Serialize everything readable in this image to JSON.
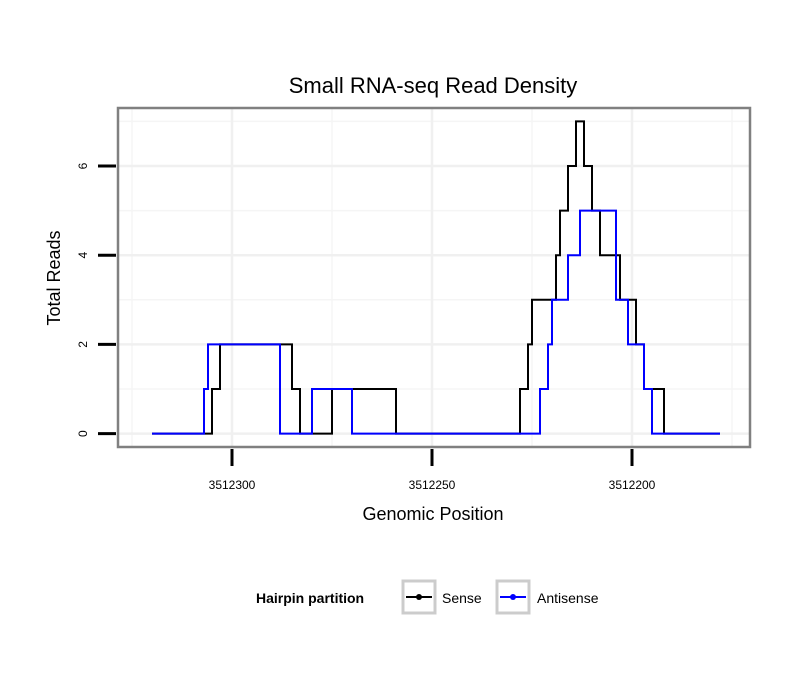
{
  "chart_data": {
    "type": "line",
    "title": "Small RNA-seq Read Density",
    "xlabel": "Genomic Position",
    "ylabel": "Total Reads",
    "xlim": [
      3512328.5,
      3512170.5
    ],
    "ylim": [
      -0.3,
      7.3
    ],
    "x_reversed": true,
    "xticks": [
      3512300,
      3512250,
      3512200
    ],
    "xtick_labels": [
      "3512300",
      "3512250",
      "3512200"
    ],
    "yticks": [
      0,
      2,
      4,
      6
    ],
    "ytick_labels": [
      "0",
      "2",
      "4",
      "6"
    ],
    "grid": true,
    "legend": {
      "title": "Hairpin partition",
      "position": "bottom",
      "entries": [
        {
          "name": "Sense",
          "color": "#000000"
        },
        {
          "name": "Antisense",
          "color": "#0000ff"
        }
      ]
    },
    "series": [
      {
        "name": "Sense",
        "color": "#000000",
        "points": [
          [
            3512320,
            0
          ],
          [
            3512305,
            0
          ],
          [
            3512305,
            1
          ],
          [
            3512303,
            1
          ],
          [
            3512303,
            2
          ],
          [
            3512285,
            2
          ],
          [
            3512285,
            1
          ],
          [
            3512283,
            1
          ],
          [
            3512283,
            0
          ],
          [
            3512275,
            0
          ],
          [
            3512275,
            1
          ],
          [
            3512259,
            1
          ],
          [
            3512259,
            0
          ],
          [
            3512228,
            0
          ],
          [
            3512228,
            1
          ],
          [
            3512226,
            1
          ],
          [
            3512226,
            2
          ],
          [
            3512225,
            2
          ],
          [
            3512225,
            3
          ],
          [
            3512219,
            3
          ],
          [
            3512219,
            4
          ],
          [
            3512218,
            4
          ],
          [
            3512218,
            5
          ],
          [
            3512216,
            5
          ],
          [
            3512216,
            6
          ],
          [
            3512214,
            6
          ],
          [
            3512214,
            7
          ],
          [
            3512212,
            7
          ],
          [
            3512212,
            6
          ],
          [
            3512210,
            6
          ],
          [
            3512210,
            5
          ],
          [
            3512208,
            5
          ],
          [
            3512208,
            4
          ],
          [
            3512203,
            4
          ],
          [
            3512203,
            3
          ],
          [
            3512199,
            3
          ],
          [
            3512199,
            2
          ],
          [
            3512197,
            2
          ],
          [
            3512197,
            1
          ],
          [
            3512192,
            1
          ],
          [
            3512192,
            0
          ],
          [
            3512178,
            0
          ]
        ]
      },
      {
        "name": "Antisense",
        "color": "#0000ff",
        "points": [
          [
            3512320,
            0
          ],
          [
            3512307,
            0
          ],
          [
            3512307,
            1
          ],
          [
            3512306,
            1
          ],
          [
            3512306,
            2
          ],
          [
            3512288,
            2
          ],
          [
            3512288,
            0
          ],
          [
            3512280,
            0
          ],
          [
            3512280,
            1
          ],
          [
            3512270,
            1
          ],
          [
            3512270,
            0
          ],
          [
            3512223,
            0
          ],
          [
            3512223,
            1
          ],
          [
            3512221,
            1
          ],
          [
            3512221,
            2
          ],
          [
            3512220,
            2
          ],
          [
            3512220,
            3
          ],
          [
            3512216,
            3
          ],
          [
            3512216,
            4
          ],
          [
            3512213,
            4
          ],
          [
            3512213,
            5
          ],
          [
            3512204,
            5
          ],
          [
            3512204,
            3
          ],
          [
            3512201,
            3
          ],
          [
            3512201,
            2
          ],
          [
            3512197,
            2
          ],
          [
            3512197,
            1
          ],
          [
            3512195,
            1
          ],
          [
            3512195,
            0
          ],
          [
            3512178,
            0
          ]
        ]
      }
    ]
  }
}
